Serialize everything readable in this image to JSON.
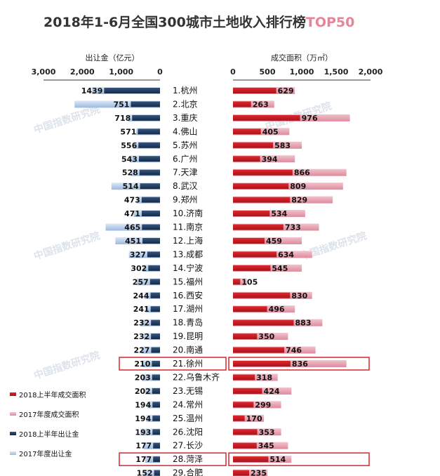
{
  "title": "2018年1-6月全国300城市土地收入排行榜",
  "title_accent": "TOP50",
  "chart_data": {
    "type": "bar",
    "left_axis": {
      "label": "出让金（亿元）",
      "ticks": [
        "3,000",
        "2,000",
        "1,000",
        "0"
      ],
      "range": [
        0,
        3000
      ]
    },
    "right_axis": {
      "label": "成交面积（万㎡）",
      "ticks": [
        "0",
        "500",
        "1,000",
        "1,500",
        "2,000"
      ],
      "range": [
        0,
        2000
      ]
    },
    "categories": [
      "1.杭州",
      "2.北京",
      "3.重庆",
      "4.佛山",
      "5.苏州",
      "6.广州",
      "7.天津",
      "8.武汉",
      "9.郑州",
      "10.济南",
      "11.南京",
      "12.上海",
      "13.成都",
      "14.宁波",
      "15.福州",
      "16.西安",
      "17.湖州",
      "18.青岛",
      "19.昆明",
      "20.南通",
      "21.徐州",
      "22.乌鲁木齐",
      "23.无锡",
      "24.常州",
      "25.温州",
      "26.沈阳",
      "27.长沙",
      "28.菏泽",
      "29.合肥"
    ],
    "series": [
      {
        "name": "2018上半年成交面积",
        "values": [
          629,
          263,
          976,
          405,
          583,
          394,
          866,
          809,
          829,
          534,
          733,
          459,
          634,
          545,
          105,
          830,
          496,
          883,
          350,
          746,
          836,
          318,
          424,
          299,
          170,
          353,
          345,
          514,
          235
        ]
      },
      {
        "name": "2017年度成交面积",
        "values": [
          900,
          600,
          1700,
          820,
          1000,
          900,
          1650,
          1600,
          1450,
          1050,
          1250,
          1000,
          1150,
          1000,
          200,
          1150,
          900,
          1300,
          800,
          1200,
          1650,
          650,
          850,
          700,
          450,
          700,
          800,
          850,
          500
        ]
      },
      {
        "name": "2018上半年出让金",
        "values": [
          1439,
          751,
          718,
          571,
          556,
          543,
          528,
          514,
          473,
          471,
          465,
          451,
          327,
          302,
          257,
          244,
          241,
          232,
          232,
          227,
          210,
          203,
          202,
          194,
          194,
          193,
          177,
          177,
          152
        ]
      },
      {
        "name": "2017年度出让金",
        "values": [
          1750,
          2200,
          820,
          620,
          700,
          760,
          750,
          1250,
          600,
          680,
          1400,
          1150,
          800,
          450,
          600,
          400,
          380,
          500,
          420,
          480,
          450,
          450,
          380,
          330,
          350,
          500,
          420,
          380,
          420
        ]
      }
    ],
    "highlighted": [
      "21.徐州",
      "28.菏泽"
    ],
    "legend_position": "bottom-left",
    "colors": {
      "area_2018": "#c8161d",
      "area_2017": "#e9a2b1",
      "revenue_2018": "#1f3a5f",
      "revenue_2017": "#b7cde8"
    },
    "watermark": "中国指数研究院"
  }
}
